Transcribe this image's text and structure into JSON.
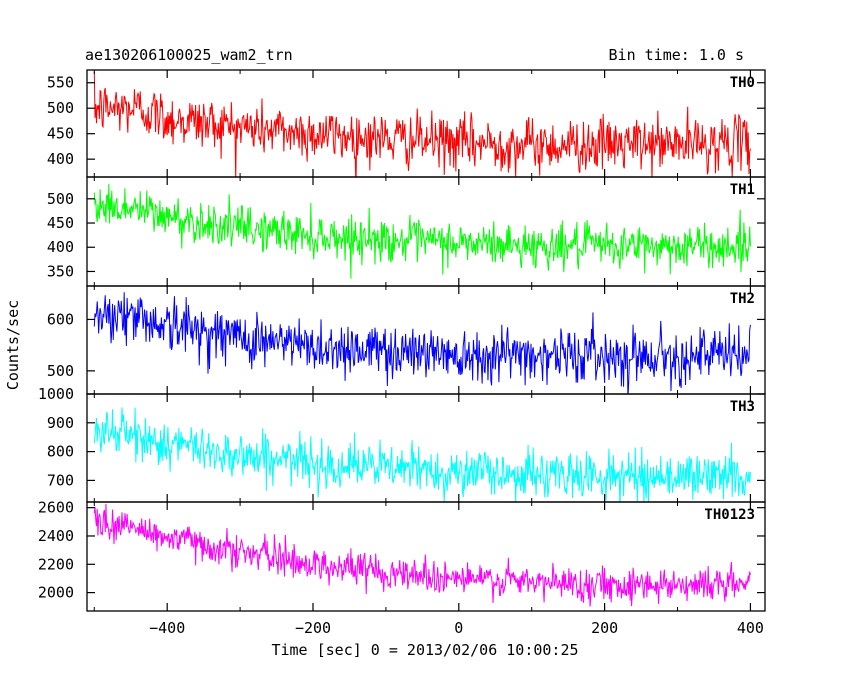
{
  "header": {
    "title": "ae130206100025_wam2_trn",
    "bin_time": "Bin time: 1.0 s"
  },
  "chart_data": {
    "type": "line",
    "title": "ae130206100025_wam2_trn",
    "xlabel": "Time [sec] 0 = 2013/02/06 10:00:25",
    "ylabel": "Counts/sec",
    "xlim": [
      -510,
      420
    ],
    "x_ticks": [
      -400,
      -200,
      0,
      200,
      400
    ],
    "x_tick_labels": [
      "−400",
      "−200",
      "0",
      "200",
      "400"
    ],
    "x_start": -500,
    "x_end": 400,
    "x_step": 1,
    "grid": false,
    "panels": [
      {
        "name": "TH0",
        "color": "#ff0000",
        "ylim": [
          365,
          575
        ],
        "yticks": [
          400,
          450,
          500,
          550
        ],
        "trend": {
          "x": [
            -500,
            -440,
            -400,
            -300,
            -200,
            -100,
            0,
            100,
            200,
            300,
            400
          ],
          "y": [
            500,
            500,
            480,
            463,
            450,
            440,
            432,
            428,
            428,
            430,
            432
          ]
        },
        "noise": 26
      },
      {
        "name": "TH1",
        "color": "#00ff00",
        "ylim": [
          320,
          545
        ],
        "yticks": [
          350,
          400,
          450,
          500
        ],
        "trend": {
          "x": [
            -500,
            -440,
            -400,
            -300,
            -200,
            -100,
            0,
            100,
            200,
            300,
            400
          ],
          "y": [
            488,
            478,
            462,
            440,
            425,
            415,
            408,
            403,
            402,
            402,
            402
          ]
        },
        "noise": 22
      },
      {
        "name": "TH2",
        "color": "#0000ff",
        "ylim": [
          455,
          665
        ],
        "yticks": [
          500,
          600
        ],
        "trend": {
          "x": [
            -500,
            -440,
            -400,
            -300,
            -200,
            -100,
            0,
            100,
            200,
            300,
            400
          ],
          "y": [
            615,
            605,
            590,
            565,
            547,
            540,
            535,
            532,
            530,
            530,
            530
          ]
        },
        "noise": 26
      },
      {
        "name": "TH3",
        "color": "#00ffff",
        "ylim": [
          625,
          1000
        ],
        "yticks": [
          700,
          800,
          900,
          1000
        ],
        "trend": {
          "x": [
            -500,
            -440,
            -400,
            -300,
            -200,
            -100,
            0,
            100,
            200,
            300,
            400
          ],
          "y": [
            880,
            850,
            825,
            790,
            760,
            745,
            730,
            720,
            715,
            715,
            715
          ]
        },
        "noise": 40
      },
      {
        "name": "TH0123",
        "color": "#ff00ff",
        "ylim": [
          1870,
          2640
        ],
        "yticks": [
          2000,
          2200,
          2400,
          2600
        ],
        "trend": {
          "x": [
            -500,
            -440,
            -400,
            -300,
            -200,
            -100,
            0,
            100,
            200,
            300,
            400
          ],
          "y": [
            2510,
            2450,
            2390,
            2290,
            2200,
            2150,
            2100,
            2070,
            2060,
            2060,
            2060
          ]
        },
        "noise": 60
      }
    ]
  }
}
